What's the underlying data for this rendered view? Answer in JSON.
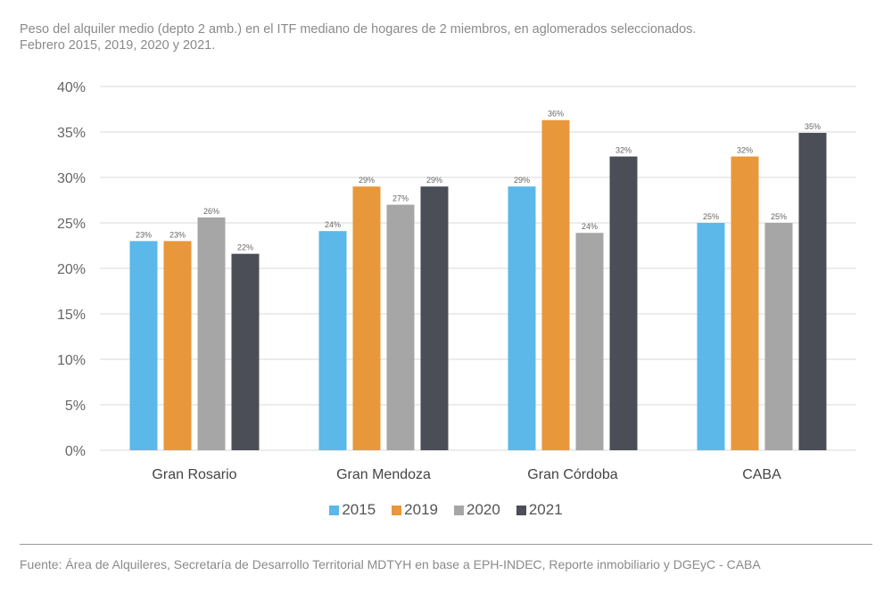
{
  "title_line1": "Peso del alquiler medio (depto 2 amb.) en el ITF mediano de hogares de 2 miembros, en aglomerados seleccionados.",
  "title_line2": "Febrero 2015, 2019, 2020 y 2021.",
  "source": "Fuente: Área de Alquileres, Secretaría de Desarrollo Territorial MDTYH en base a EPH-INDEC, Reporte inmobiliario y DGEyC - CABA",
  "chart_data": {
    "type": "bar",
    "title": "Peso del alquiler medio (depto 2 amb.) en el ITF mediano de hogares de 2 miembros, en aglomerados seleccionados. Febrero 2015, 2019, 2020 y 2021.",
    "xlabel": "",
    "ylabel": "",
    "ylim": [
      0,
      40
    ],
    "yticks": [
      0,
      5,
      10,
      15,
      20,
      25,
      30,
      35,
      40
    ],
    "ytick_labels": [
      "0%",
      "5%",
      "10%",
      "15%",
      "20%",
      "25%",
      "30%",
      "35%",
      "40%"
    ],
    "grid": true,
    "legend_position": "bottom",
    "categories": [
      "Gran Rosario",
      "Gran Mendoza",
      "Gran Córdoba",
      "CABA"
    ],
    "series": [
      {
        "name": "2015",
        "color": "#5bb8e8",
        "values": [
          23.0,
          24.1,
          29.0,
          25.0
        ],
        "labels": [
          "23%",
          "24%",
          "29%",
          "25%"
        ]
      },
      {
        "name": "2019",
        "color": "#e8973a",
        "values": [
          23.0,
          29.0,
          36.3,
          32.3
        ],
        "labels": [
          "23%",
          "29%",
          "36%",
          "32%"
        ]
      },
      {
        "name": "2020",
        "color": "#a6a6a6",
        "values": [
          25.6,
          27.0,
          23.9,
          25.0
        ],
        "labels": [
          "26%",
          "27%",
          "24%",
          "25%"
        ]
      },
      {
        "name": "2021",
        "color": "#4b4e56",
        "values": [
          21.6,
          29.0,
          32.3,
          34.9
        ],
        "labels": [
          "22%",
          "29%",
          "32%",
          "35%"
        ]
      }
    ]
  }
}
